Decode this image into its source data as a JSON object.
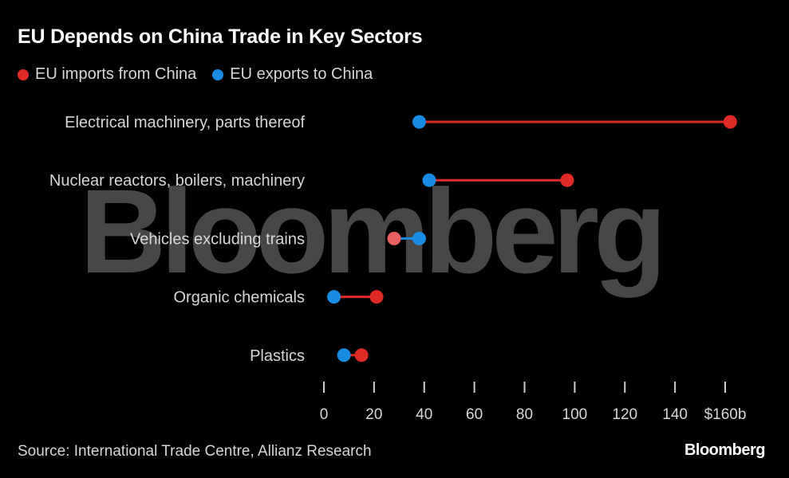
{
  "title": "EU Depends on China Trade in Key Sectors",
  "legend": {
    "imports_label": "EU imports from China",
    "exports_label": "EU exports to China"
  },
  "colors": {
    "imports": "#e02a27",
    "exports": "#1a8be3",
    "imports_light": "#e86060",
    "background": "#000000",
    "watermark": "#4a4a4a"
  },
  "watermark": "Bloomberg",
  "source": "Source: International Trade Centre, Allianz Research",
  "brand": "Bloomberg",
  "chart_data": {
    "type": "dot-plot",
    "title": "EU Depends on China Trade in Key Sectors",
    "categories": [
      "Electrical machinery, parts thereof",
      "Nuclear reactors, boilers, machinery",
      "Vehicles excluding trains",
      "Organic chemicals",
      "Plastics"
    ],
    "series": [
      {
        "name": "EU imports from China",
        "values": [
          162,
          97,
          28,
          21,
          15
        ]
      },
      {
        "name": "EU exports to China",
        "values": [
          38,
          42,
          38,
          4,
          8
        ]
      }
    ],
    "xlim": [
      0,
      160
    ],
    "x_ticks": [
      0,
      20,
      40,
      60,
      80,
      100,
      120,
      140,
      160
    ],
    "x_tick_labels": [
      "0",
      "20",
      "40",
      "60",
      "80",
      "100",
      "120",
      "140",
      "$160b"
    ],
    "xlabel": "",
    "ylabel": "",
    "grid": false,
    "legend_position": "top-left"
  }
}
